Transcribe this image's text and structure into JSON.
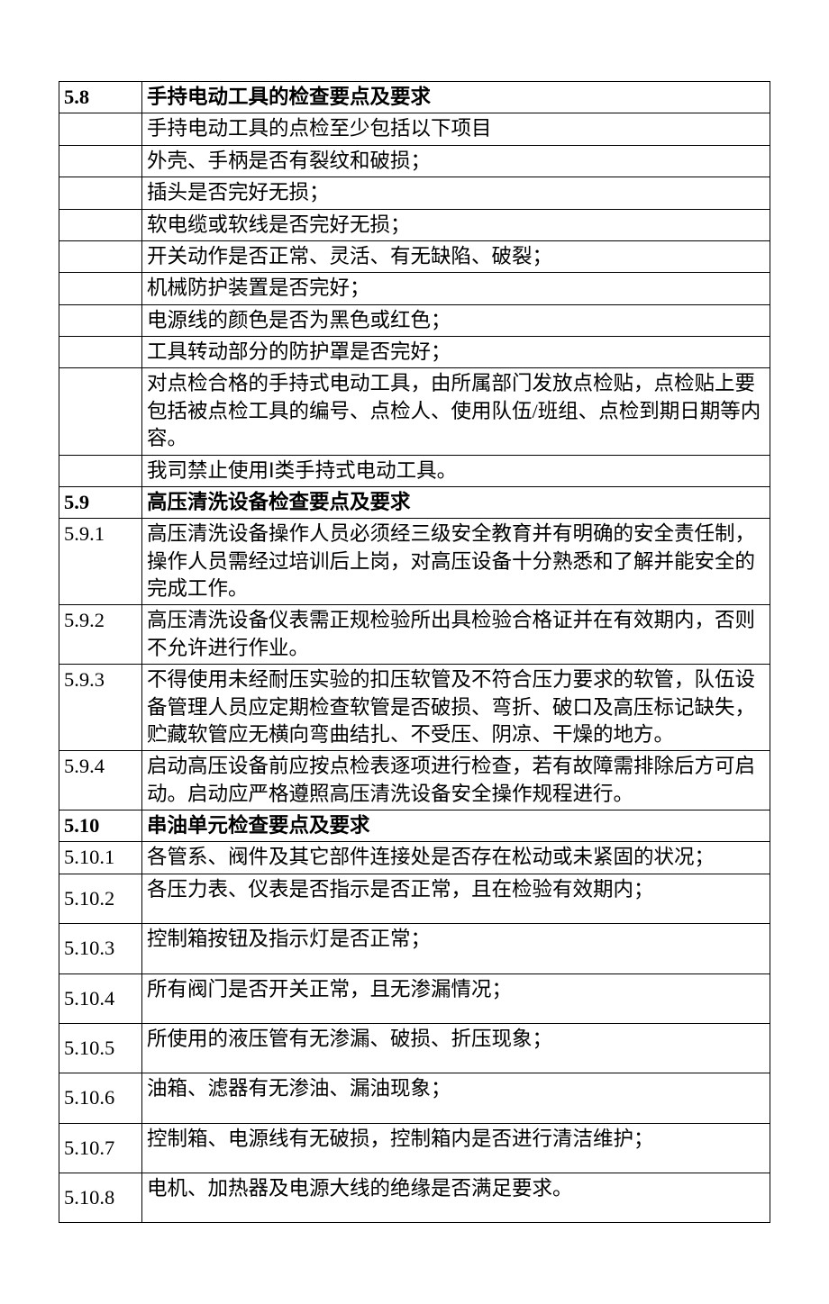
{
  "rows": [
    {
      "num": "5.8",
      "content": "手持电动工具的检查要点及要求",
      "bold": true,
      "tall": false
    },
    {
      "num": "",
      "content": "手持电动工具的点检至少包括以下项目",
      "bold": false,
      "tall": false
    },
    {
      "num": "",
      "content": "外壳、手柄是否有裂纹和破损；",
      "bold": false,
      "tall": false
    },
    {
      "num": "",
      "content": "插头是否完好无损；",
      "bold": false,
      "tall": false
    },
    {
      "num": "",
      "content": "软电缆或软线是否完好无损；",
      "bold": false,
      "tall": false
    },
    {
      "num": "",
      "content": "开关动作是否正常、灵活、有无缺陷、破裂；",
      "bold": false,
      "tall": false
    },
    {
      "num": "",
      "content": "机械防护装置是否完好；",
      "bold": false,
      "tall": false
    },
    {
      "num": "",
      "content": "电源线的颜色是否为黑色或红色；",
      "bold": false,
      "tall": false
    },
    {
      "num": "",
      "content": "工具转动部分的防护罩是否完好；",
      "bold": false,
      "tall": false
    },
    {
      "num": "",
      "content": "对点检合格的手持式电动工具，由所属部门发放点检贴，点检贴上要包括被点检工具的编号、点检人、使用队伍/班组、点检到期日期等内容。",
      "bold": false,
      "tall": false
    },
    {
      "num": "",
      "content": "我司禁止使用Ⅰ类手持式电动工具。",
      "bold": false,
      "tall": false
    },
    {
      "num": "5.9",
      "content": "高压清洗设备检查要点及要求",
      "bold": true,
      "tall": false
    },
    {
      "num": "5.9.1",
      "content": "高压清洗设备操作人员必须经三级安全教育并有明确的安全责任制，操作人员需经过培训后上岗，对高压设备十分熟悉和了解并能安全的完成工作。",
      "bold": false,
      "tall": false
    },
    {
      "num": "5.9.2",
      "content": "高压清洗设备仪表需正规检验所出具检验合格证并在有效期内，否则不允许进行作业。",
      "bold": false,
      "tall": false
    },
    {
      "num": "5.9.3",
      "content": "不得使用未经耐压实验的扣压软管及不符合压力要求的软管，队伍设备管理人员应定期检查软管是否破损、弯折、破口及高压标记缺失，贮藏软管应无横向弯曲结扎、不受压、阴凉、干燥的地方。",
      "bold": false,
      "tall": false
    },
    {
      "num": "5.9.4",
      "content": "启动高压设备前应按点检表逐项进行检查，若有故障需排除后方可启动。启动应严格遵照高压清洗设备安全操作规程进行。",
      "bold": false,
      "tall": false
    },
    {
      "num": "5.10",
      "content": "串油单元检查要点及要求",
      "bold": true,
      "tall": false
    },
    {
      "num": "5.10.1",
      "content": "各管系、阀件及其它部件连接处是否存在松动或未紧固的状况；",
      "bold": false,
      "tall": false
    },
    {
      "num": "5.10.2",
      "content": "各压力表、仪表是否指示是否正常，且在检验有效期内；",
      "bold": false,
      "tall": true
    },
    {
      "num": "5.10.3",
      "content": "控制箱按钮及指示灯是否正常；",
      "bold": false,
      "tall": true
    },
    {
      "num": "5.10.4",
      "content": "所有阀门是否开关正常，且无渗漏情况；",
      "bold": false,
      "tall": true
    },
    {
      "num": "5.10.5",
      "content": "所使用的液压管有无渗漏、破损、折压现象；",
      "bold": false,
      "tall": true
    },
    {
      "num": "5.10.6",
      "content": "油箱、滤器有无渗油、漏油现象；",
      "bold": false,
      "tall": true
    },
    {
      "num": "5.10.7",
      "content": "控制箱、电源线有无破损，控制箱内是否进行清洁维护；",
      "bold": false,
      "tall": true
    },
    {
      "num": "5.10.8",
      "content": "电机、加热器及电源大线的绝缘是否满足要求。",
      "bold": false,
      "tall": true
    }
  ]
}
